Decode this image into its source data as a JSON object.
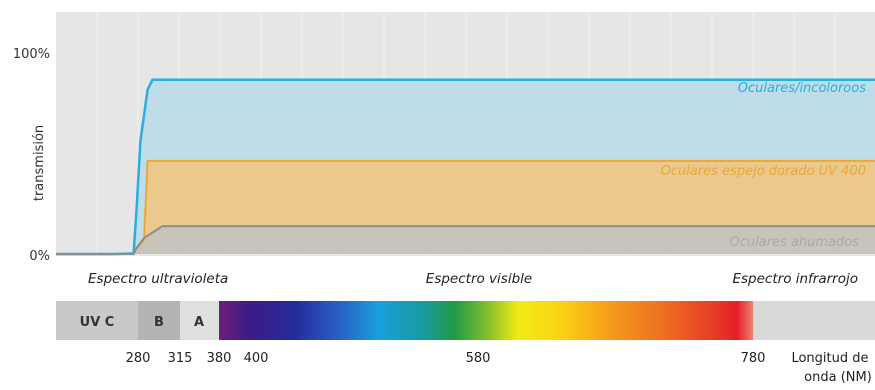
{
  "chart_data": {
    "type": "area",
    "ylabel": "transmisión",
    "y_ticks": [
      "100%",
      "0%"
    ],
    "ylim": [
      0,
      100
    ],
    "series": [
      {
        "name": "Oculares/incoloroos",
        "color": "#2aaee0",
        "fill": "#bfdce9",
        "points": [
          [
            0,
            0
          ],
          [
            200,
            0
          ],
          [
            265,
            0.3
          ],
          [
            275,
            22
          ],
          [
            282,
            57
          ],
          [
            288,
            83
          ],
          [
            292,
            88
          ],
          [
            300,
            88
          ],
          [
            1000,
            88
          ]
        ]
      },
      {
        "name": "Oculares espejo dorado UV 400",
        "color": "#e8a83a",
        "fill": "#ebc88c",
        "points": [
          [
            0,
            0
          ],
          [
            265,
            0
          ],
          [
            275,
            3
          ],
          [
            285,
            7
          ],
          [
            288,
            47
          ],
          [
            300,
            47
          ],
          [
            1000,
            47
          ]
        ]
      },
      {
        "name": "Oculares ahumados",
        "color": "#8c8c8c",
        "fill": "#c9c4ba",
        "points": [
          [
            0,
            0
          ],
          [
            265,
            0
          ],
          [
            275,
            3
          ],
          [
            285,
            8
          ],
          [
            300,
            14
          ],
          [
            312,
            14
          ],
          [
            1000,
            14
          ]
        ]
      }
    ],
    "spectrum_regions": [
      "Espectro ultravioleta",
      "Espectro visible",
      "Espectro infrarrojo"
    ],
    "uv_bands": [
      "UV C",
      "B",
      "A"
    ],
    "x_ticks": [
      280,
      315,
      380,
      400,
      580,
      780
    ],
    "xlabel_line1": "Longitud de",
    "xlabel_line2": "onda (NM)"
  }
}
